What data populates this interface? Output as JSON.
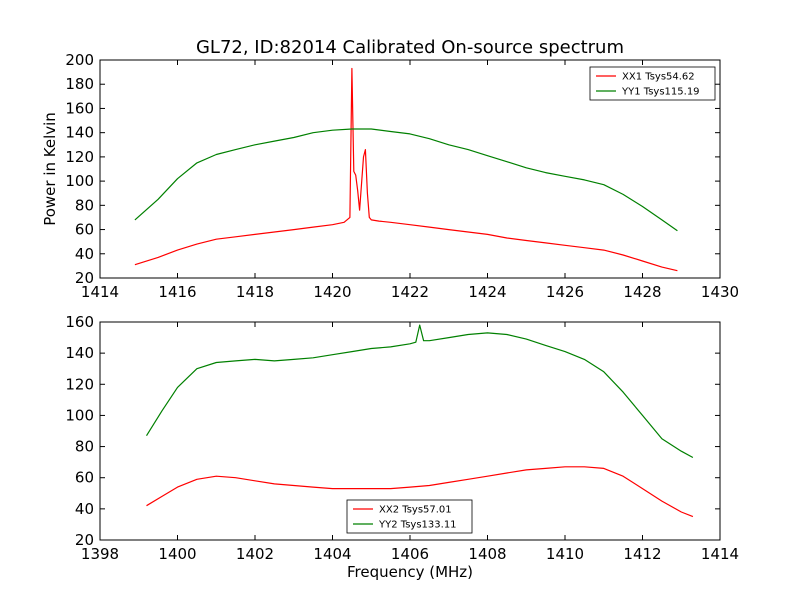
{
  "title": "GL72, ID:82014 Calibrated On-source spectrum",
  "chart_data": [
    {
      "type": "line",
      "ylabel": "Power in Kelvin",
      "xlabel": "",
      "xlim": [
        1414,
        1430
      ],
      "ylim": [
        20,
        200
      ],
      "xticks": [
        1414,
        1416,
        1418,
        1420,
        1422,
        1424,
        1426,
        1428,
        1430
      ],
      "yticks": [
        20,
        40,
        60,
        80,
        100,
        120,
        140,
        160,
        180,
        200
      ],
      "legend_position": "top-right",
      "series": [
        {
          "name": "XX1 Tsys54.62",
          "color": "#ff0000",
          "x": [
            1414.9,
            1415.5,
            1416.0,
            1416.5,
            1417.0,
            1417.5,
            1418.0,
            1418.5,
            1419.0,
            1419.5,
            1420.0,
            1420.3,
            1420.45,
            1420.5,
            1420.55,
            1420.6,
            1420.65,
            1420.7,
            1420.8,
            1420.85,
            1420.9,
            1420.95,
            1421.0,
            1421.2,
            1421.5,
            1422.0,
            1422.5,
            1423.0,
            1423.5,
            1424.0,
            1424.5,
            1425.0,
            1425.5,
            1426.0,
            1426.5,
            1427.0,
            1427.5,
            1428.0,
            1428.5,
            1428.9
          ],
          "y": [
            31,
            37,
            43,
            48,
            52,
            54,
            56,
            58,
            60,
            62,
            64,
            66,
            70,
            193,
            108,
            105,
            92,
            76,
            120,
            126,
            90,
            70,
            68,
            67,
            66,
            64,
            62,
            60,
            58,
            56,
            53,
            51,
            49,
            47,
            45,
            43,
            39,
            34,
            29,
            26
          ]
        },
        {
          "name": "YY1 Tsys115.19",
          "color": "#008000",
          "x": [
            1414.9,
            1415.5,
            1416.0,
            1416.5,
            1417.0,
            1417.5,
            1418.0,
            1418.5,
            1419.0,
            1419.5,
            1420.0,
            1420.5,
            1421.0,
            1421.5,
            1422.0,
            1422.5,
            1423.0,
            1423.5,
            1424.0,
            1424.5,
            1425.0,
            1425.5,
            1426.0,
            1426.5,
            1427.0,
            1427.5,
            1428.0,
            1428.5,
            1428.9
          ],
          "y": [
            68,
            85,
            102,
            115,
            122,
            126,
            130,
            133,
            136,
            140,
            142,
            143,
            143,
            141,
            139,
            135,
            130,
            126,
            121,
            116,
            111,
            107,
            104,
            101,
            97,
            89,
            79,
            68,
            59
          ]
        }
      ]
    },
    {
      "type": "line",
      "ylabel": "",
      "xlabel": "Frequency (MHz)",
      "xlim": [
        1398,
        1414
      ],
      "ylim": [
        20,
        160
      ],
      "xticks": [
        1398,
        1400,
        1402,
        1404,
        1406,
        1408,
        1410,
        1412,
        1414
      ],
      "yticks": [
        20,
        40,
        60,
        80,
        100,
        120,
        140,
        160
      ],
      "legend_position": "lower-center",
      "series": [
        {
          "name": "XX2 Tsys57.01",
          "color": "#ff0000",
          "x": [
            1399.2,
            1399.6,
            1400.0,
            1400.5,
            1401.0,
            1401.5,
            1402.0,
            1402.5,
            1403.0,
            1403.5,
            1404.0,
            1404.5,
            1405.0,
            1405.5,
            1406.0,
            1406.5,
            1407.0,
            1407.5,
            1408.0,
            1408.5,
            1409.0,
            1409.5,
            1410.0,
            1410.5,
            1411.0,
            1411.5,
            1412.0,
            1412.5,
            1413.0,
            1413.3
          ],
          "y": [
            42,
            48,
            54,
            59,
            61,
            60,
            58,
            56,
            55,
            54,
            53,
            53,
            53,
            53,
            54,
            55,
            57,
            59,
            61,
            63,
            65,
            66,
            67,
            67,
            66,
            61,
            53,
            45,
            38,
            35
          ]
        },
        {
          "name": "YY2 Tsys133.11",
          "color": "#008000",
          "x": [
            1399.2,
            1399.6,
            1400.0,
            1400.5,
            1401.0,
            1401.5,
            1402.0,
            1402.5,
            1403.0,
            1403.5,
            1404.0,
            1404.5,
            1405.0,
            1405.5,
            1406.0,
            1406.15,
            1406.25,
            1406.35,
            1406.5,
            1407.0,
            1407.5,
            1408.0,
            1408.5,
            1409.0,
            1409.5,
            1410.0,
            1410.5,
            1411.0,
            1411.5,
            1412.0,
            1412.5,
            1413.0,
            1413.3
          ],
          "y": [
            87,
            103,
            118,
            130,
            134,
            135,
            136,
            135,
            136,
            137,
            139,
            141,
            143,
            144,
            146,
            147,
            158,
            148,
            148,
            150,
            152,
            153,
            152,
            149,
            145,
            141,
            136,
            128,
            115,
            100,
            85,
            77,
            73
          ]
        }
      ]
    }
  ]
}
